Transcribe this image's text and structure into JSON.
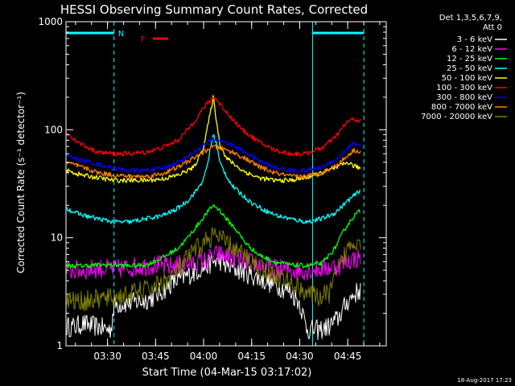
{
  "chart_data": {
    "type": "line",
    "title": "HESSI Observing Summary Count Rates, Corrected",
    "xlabel": "Start Time (04-Mar-15 03:17:02)",
    "ylabel": "Corrected Count Rate (s⁻¹ detector⁻¹)",
    "y_scale": "log",
    "ylim": [
      1,
      1000
    ],
    "xlim_minutes": [
      0,
      100
    ],
    "x_tick_labels": [
      "03:30",
      "03:45",
      "04:00",
      "04:15",
      "04:30",
      "04:45"
    ],
    "x_tick_minutes": [
      12.97,
      27.97,
      42.97,
      57.97,
      72.97,
      87.97
    ],
    "y_tick_labels": [
      "1",
      "10",
      "100",
      "1000"
    ],
    "y_tick_values": [
      1,
      10,
      100,
      1000
    ],
    "legend_header": [
      "Det 1,3,5,6,7,9,",
      "Att 0"
    ],
    "footer_timestamp": "18-Aug-2017 17:23",
    "annotations": {
      "night_label": "N",
      "flare_label": "F",
      "night_bars_minutes": [
        [
          0,
          15
        ],
        [
          77,
          93
        ]
      ],
      "night_dashed_lines_minutes": [
        15,
        93
      ],
      "saa_solid_line_minute": 77,
      "colors": {
        "night": "#00ffff",
        "flare": "#ff0000",
        "axes": "#ffffff"
      }
    },
    "series": [
      {
        "name": "3 - 6 keV",
        "color": "#ffffff",
        "x": [
          0,
          3,
          5,
          10,
          14,
          15,
          20,
          24,
          27,
          30,
          33,
          36,
          40,
          44,
          46,
          48,
          50,
          54,
          58,
          62,
          66,
          70,
          73,
          75,
          76,
          79,
          82,
          85,
          88,
          90,
          92
        ],
        "y": [
          1.5,
          1.5,
          1.6,
          1.5,
          1.4,
          2.4,
          2.5,
          2.6,
          2.8,
          3.2,
          3.8,
          4.2,
          4.8,
          5.5,
          6,
          6.2,
          5.5,
          5,
          4.5,
          4,
          3.6,
          3.2,
          2.5,
          1.5,
          1.4,
          1.4,
          1.5,
          1.8,
          2.6,
          3,
          3.3
        ]
      },
      {
        "name": "6 - 12 keV",
        "color": "#ff00ff",
        "x": [
          0,
          5,
          10,
          15,
          20,
          25,
          28,
          30,
          32,
          35,
          40,
          44,
          46,
          48,
          52,
          56,
          60,
          65,
          70,
          75,
          80,
          85,
          88,
          92
        ],
        "y": [
          5,
          5,
          5.2,
          5.1,
          5.3,
          5.5,
          5.6,
          5.5,
          5.4,
          5.6,
          5.8,
          6.2,
          6.8,
          7,
          6.5,
          6,
          5.6,
          5.2,
          5,
          5,
          5.2,
          5.5,
          6.2,
          6.5
        ]
      },
      {
        "name": "12 - 25 keV",
        "color": "#00ff00",
        "x": [
          0,
          5,
          10,
          15,
          20,
          25,
          30,
          35,
          38,
          41,
          44,
          46,
          48,
          50,
          53,
          56,
          60,
          65,
          70,
          75,
          80,
          84,
          87,
          90,
          92
        ],
        "y": [
          5.5,
          5.5,
          5.6,
          5.6,
          5.5,
          5.6,
          6.5,
          8,
          10,
          13,
          17,
          20,
          18,
          15,
          12,
          9,
          7,
          6,
          5.6,
          5.5,
          5.8,
          8,
          12,
          16,
          18
        ]
      },
      {
        "name": "25 - 50 keV",
        "color": "#00ffff",
        "x": [
          0,
          3,
          6,
          10,
          15,
          20,
          25,
          30,
          34,
          38,
          41,
          43,
          44,
          45,
          46,
          47,
          48,
          50,
          52,
          55,
          58,
          62,
          66,
          70,
          75,
          80,
          84,
          88,
          91,
          92
        ],
        "y": [
          19,
          17,
          16,
          15,
          14,
          14,
          15,
          16,
          18,
          22,
          28,
          35,
          45,
          65,
          90,
          75,
          50,
          38,
          30,
          25,
          21,
          18,
          16,
          15,
          14,
          15,
          17,
          22,
          26,
          28
        ]
      },
      {
        "name": "50 - 100 keV",
        "color": "#ffff00",
        "x": [
          0,
          5,
          10,
          15,
          20,
          25,
          30,
          35,
          40,
          43,
          45,
          46,
          47,
          48,
          50,
          55,
          60,
          65,
          70,
          75,
          80,
          85,
          88,
          90,
          92
        ],
        "y": [
          42,
          38,
          36,
          34,
          34,
          34,
          35,
          38,
          45,
          70,
          140,
          200,
          120,
          75,
          55,
          42,
          36,
          34,
          34,
          36,
          40,
          45,
          50,
          46,
          44
        ]
      },
      {
        "name": "100 - 300 keV",
        "color": "#ff0000",
        "x": [
          0,
          3,
          6,
          10,
          15,
          20,
          25,
          30,
          35,
          38,
          41,
          43,
          45,
          46,
          47,
          49,
          52,
          55,
          60,
          65,
          70,
          75,
          80,
          84,
          88,
          90,
          92
        ],
        "y": [
          95,
          80,
          70,
          62,
          60,
          60,
          62,
          68,
          80,
          100,
          130,
          160,
          185,
          200,
          190,
          160,
          125,
          100,
          78,
          65,
          60,
          60,
          68,
          85,
          120,
          125,
          120
        ]
      },
      {
        "name": "300 - 800 keV",
        "color": "#0000ff",
        "x": [
          0,
          5,
          10,
          15,
          20,
          25,
          30,
          35,
          40,
          44,
          46,
          48,
          52,
          56,
          60,
          65,
          70,
          75,
          80,
          85,
          88,
          90,
          92
        ],
        "y": [
          58,
          52,
          48,
          44,
          42,
          42,
          44,
          50,
          62,
          75,
          82,
          80,
          72,
          62,
          52,
          45,
          42,
          42,
          45,
          55,
          68,
          75,
          72
        ]
      },
      {
        "name": "800 - 7000 keV",
        "color": "#ff8000",
        "x": [
          0,
          5,
          10,
          15,
          20,
          25,
          30,
          35,
          40,
          44,
          46,
          48,
          52,
          56,
          60,
          65,
          70,
          75,
          80,
          85,
          88,
          90,
          92
        ],
        "y": [
          50,
          45,
          40,
          38,
          37,
          37,
          39,
          45,
          55,
          65,
          70,
          68,
          62,
          54,
          46,
          40,
          37,
          37,
          40,
          48,
          58,
          65,
          62
        ]
      },
      {
        "name": "7000 - 20000 keV",
        "color": "#808000",
        "x": [
          0,
          5,
          10,
          15,
          20,
          25,
          30,
          35,
          38,
          41,
          44,
          46,
          48,
          51,
          55,
          60,
          65,
          70,
          75,
          78,
          82,
          85,
          88,
          90,
          92
        ],
        "y": [
          2.6,
          2.6,
          2.7,
          2.8,
          3,
          3.3,
          3.8,
          5,
          6.5,
          8,
          9.5,
          10.5,
          10,
          8.5,
          7,
          5.5,
          4.5,
          3.8,
          3.2,
          2.8,
          3,
          5,
          8,
          9.5,
          9.5
        ]
      }
    ]
  }
}
